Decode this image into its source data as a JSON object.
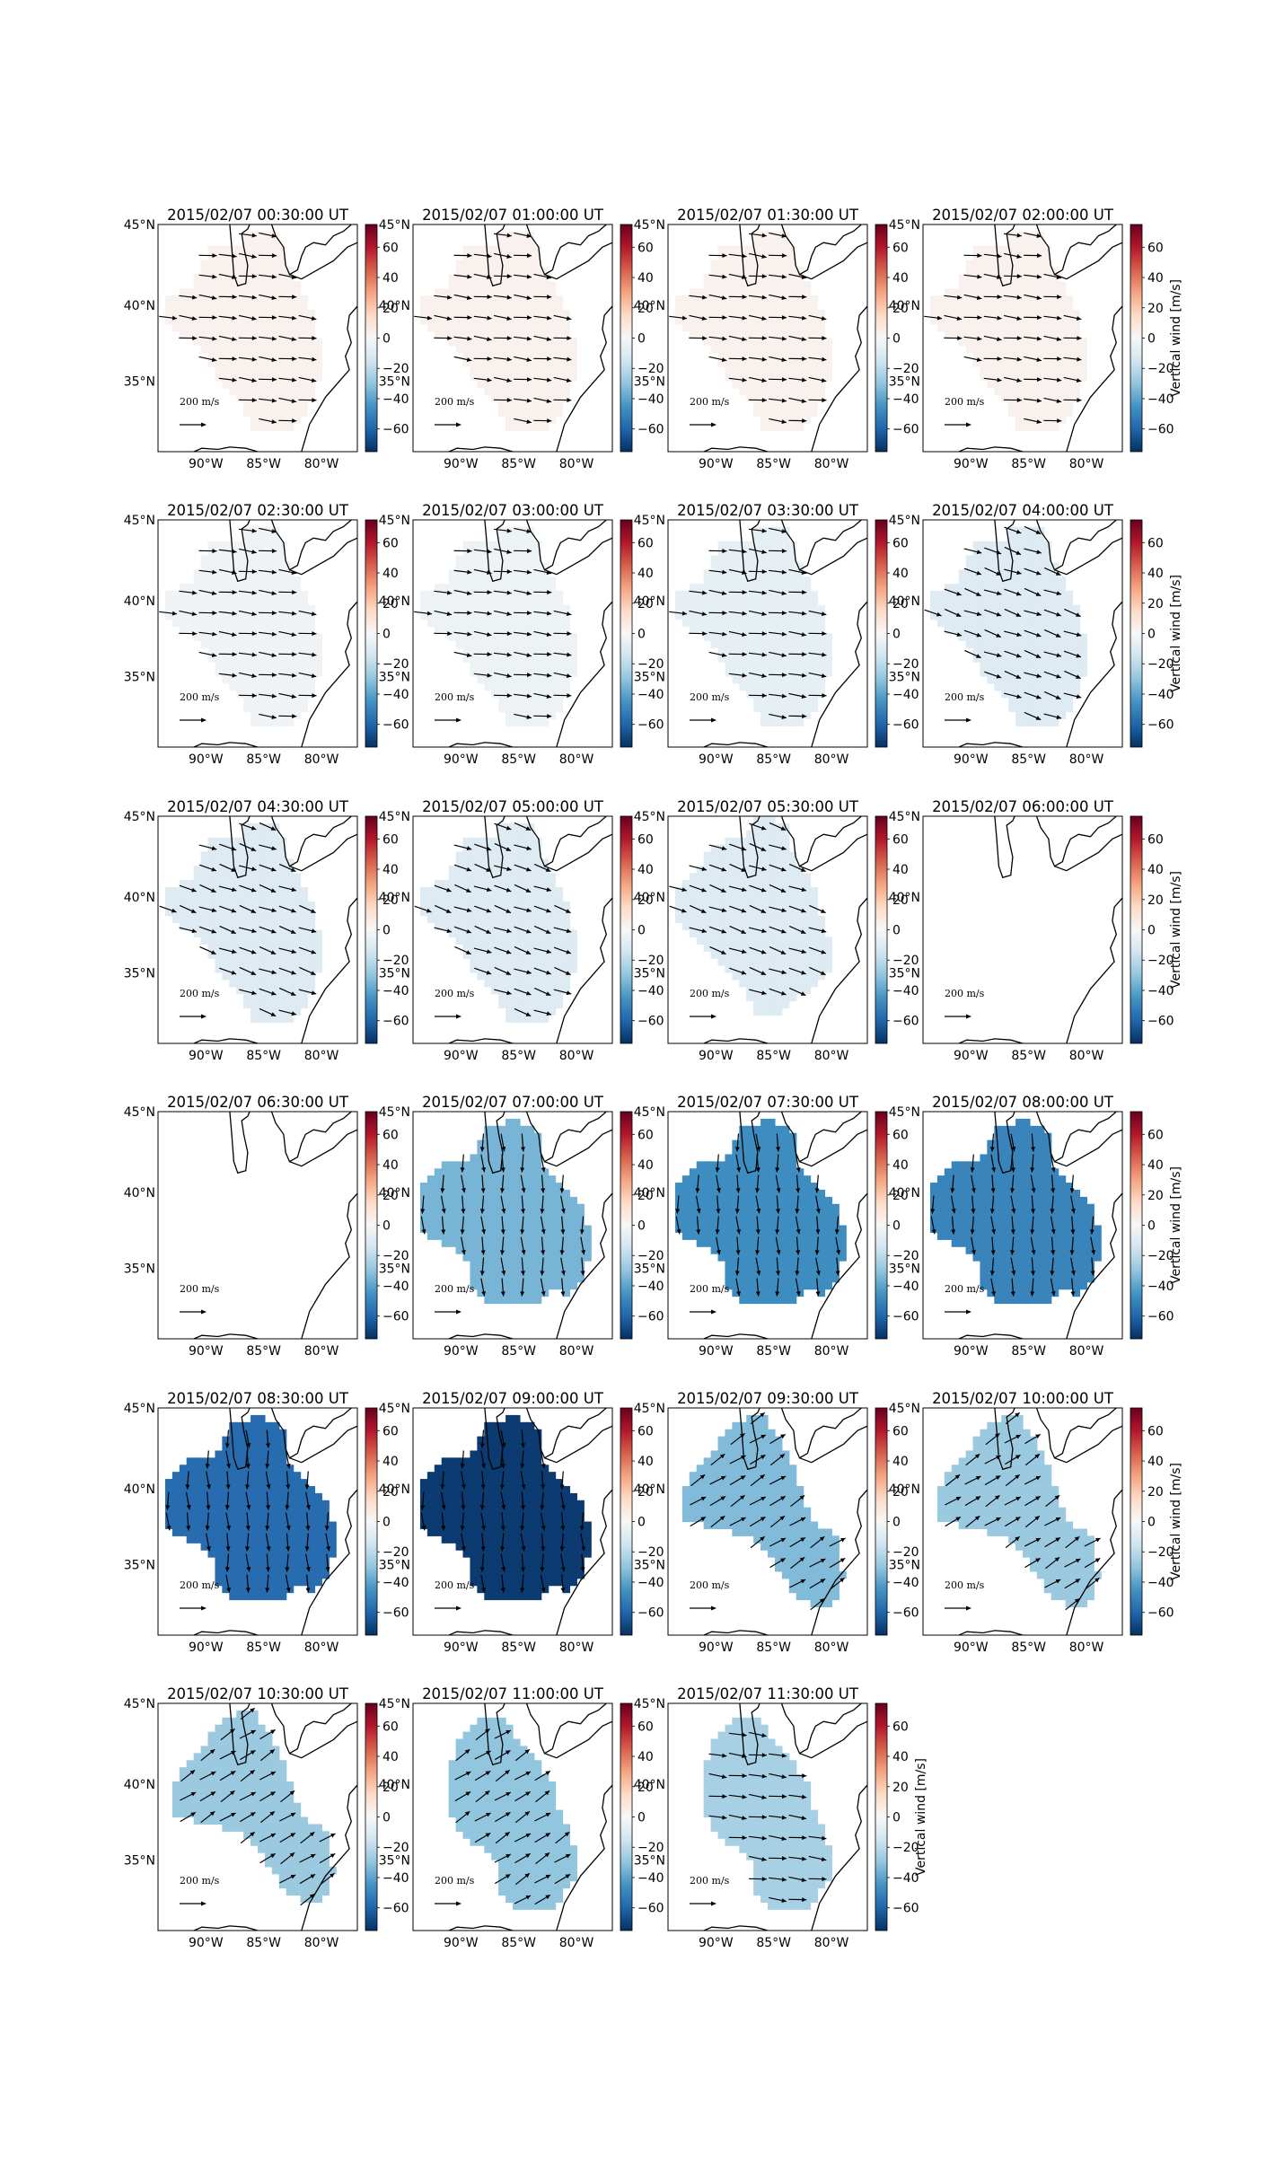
{
  "figure": {
    "colorbar_label": "Vertical wind [m/s]",
    "colorbar_ticks": [
      "60",
      "40",
      "20",
      "0",
      "−20",
      "−40",
      "−60"
    ],
    "lat_ticks": [
      "45°N",
      "40°N",
      "35°N"
    ],
    "lon_ticks": [
      "90°W",
      "85°W",
      "80°W"
    ],
    "reference_arrow_label": "200 m/s",
    "colors": {
      "map_outline": "#000000",
      "colormap": [
        "#053061",
        "#2166ac",
        "#4393c3",
        "#92c5de",
        "#d1e5f0",
        "#f7f7f7",
        "#fddbc7",
        "#f4a582",
        "#d6604d",
        "#b2182b",
        "#67001f"
      ]
    }
  },
  "chart_data": [
    {
      "type": "heatmap",
      "title": "2015/02/07 00:30:00 UT",
      "xlim": [
        -94,
        -77
      ],
      "ylim": [
        30.5,
        45
      ],
      "vmin": -75,
      "vmax": 75,
      "mean_vertical_wind": 3,
      "shape": "A",
      "winds": "west"
    },
    {
      "type": "heatmap",
      "title": "2015/02/07 01:00:00 UT",
      "xlim": [
        -94,
        -77
      ],
      "ylim": [
        30.5,
        45
      ],
      "vmin": -75,
      "vmax": 75,
      "mean_vertical_wind": 3,
      "shape": "A",
      "winds": "west"
    },
    {
      "type": "heatmap",
      "title": "2015/02/07 01:30:00 UT",
      "xlim": [
        -94,
        -77
      ],
      "ylim": [
        30.5,
        45
      ],
      "vmin": -75,
      "vmax": 75,
      "mean_vertical_wind": 3,
      "shape": "A",
      "winds": "west"
    },
    {
      "type": "heatmap",
      "title": "2015/02/07 02:00:00 UT",
      "xlim": [
        -94,
        -77
      ],
      "ylim": [
        30.5,
        45
      ],
      "vmin": -75,
      "vmax": 75,
      "mean_vertical_wind": 3,
      "shape": "A",
      "winds": "west"
    },
    {
      "type": "heatmap",
      "title": "2015/02/07 02:30:00 UT",
      "xlim": [
        -94,
        -77
      ],
      "ylim": [
        30.5,
        45
      ],
      "vmin": -75,
      "vmax": 75,
      "mean_vertical_wind": -3,
      "shape": "A",
      "winds": "west"
    },
    {
      "type": "heatmap",
      "title": "2015/02/07 03:00:00 UT",
      "xlim": [
        -94,
        -77
      ],
      "ylim": [
        30.5,
        45
      ],
      "vmin": -75,
      "vmax": 75,
      "mean_vertical_wind": -4,
      "shape": "A",
      "winds": "west"
    },
    {
      "type": "heatmap",
      "title": "2015/02/07 03:30:00 UT",
      "xlim": [
        -94,
        -77
      ],
      "ylim": [
        30.5,
        45
      ],
      "vmin": -75,
      "vmax": 75,
      "mean_vertical_wind": -7,
      "shape": "A",
      "winds": "west"
    },
    {
      "type": "heatmap",
      "title": "2015/02/07 04:00:00 UT",
      "xlim": [
        -94,
        -77
      ],
      "ylim": [
        30.5,
        45
      ],
      "vmin": -75,
      "vmax": 75,
      "mean_vertical_wind": -10,
      "shape": "A",
      "winds": "northwest"
    },
    {
      "type": "heatmap",
      "title": "2015/02/07 04:30:00 UT",
      "xlim": [
        -94,
        -77
      ],
      "ylim": [
        30.5,
        45
      ],
      "vmin": -75,
      "vmax": 75,
      "mean_vertical_wind": -10,
      "shape": "A",
      "winds": "northwest"
    },
    {
      "type": "heatmap",
      "title": "2015/02/07 05:00:00 UT",
      "xlim": [
        -94,
        -77
      ],
      "ylim": [
        30.5,
        45
      ],
      "vmin": -75,
      "vmax": 75,
      "mean_vertical_wind": -10,
      "shape": "A",
      "winds": "northwest"
    },
    {
      "type": "heatmap",
      "title": "2015/02/07 05:30:00 UT",
      "xlim": [
        -94,
        -77
      ],
      "ylim": [
        30.5,
        45
      ],
      "vmin": -75,
      "vmax": 75,
      "mean_vertical_wind": -10,
      "shape": "B",
      "winds": "northwest"
    },
    {
      "type": "heatmap",
      "title": "2015/02/07 06:00:00 UT",
      "xlim": [
        -94,
        -77
      ],
      "ylim": [
        30.5,
        45
      ],
      "vmin": -75,
      "vmax": 75,
      "shape": "empty"
    },
    {
      "type": "heatmap",
      "title": "2015/02/07 06:30:00 UT",
      "xlim": [
        -94,
        -77
      ],
      "ylim": [
        30.5,
        45
      ],
      "vmin": -75,
      "vmax": 75,
      "shape": "empty"
    },
    {
      "type": "heatmap",
      "title": "2015/02/07 07:00:00 UT",
      "xlim": [
        -94,
        -77
      ],
      "ylim": [
        30.5,
        45
      ],
      "vmin": -75,
      "vmax": 75,
      "mean_vertical_wind": -35,
      "shape": "C",
      "winds": "north"
    },
    {
      "type": "heatmap",
      "title": "2015/02/07 07:30:00 UT",
      "xlim": [
        -94,
        -77
      ],
      "ylim": [
        30.5,
        45
      ],
      "vmin": -75,
      "vmax": 75,
      "mean_vertical_wind": -47,
      "shape": "C",
      "winds": "north"
    },
    {
      "type": "heatmap",
      "title": "2015/02/07 08:00:00 UT",
      "xlim": [
        -94,
        -77
      ],
      "ylim": [
        30.5,
        45
      ],
      "vmin": -75,
      "vmax": 75,
      "mean_vertical_wind": -50,
      "shape": "C",
      "winds": "north"
    },
    {
      "type": "heatmap",
      "title": "2015/02/07 08:30:00 UT",
      "xlim": [
        -94,
        -77
      ],
      "ylim": [
        30.5,
        45
      ],
      "vmin": -75,
      "vmax": 75,
      "mean_vertical_wind": -58,
      "shape": "C",
      "winds": "north"
    },
    {
      "type": "heatmap",
      "title": "2015/02/07 09:00:00 UT",
      "xlim": [
        -94,
        -77
      ],
      "ylim": [
        30.5,
        45
      ],
      "vmin": -75,
      "vmax": 75,
      "mean_vertical_wind": -72,
      "shape": "C",
      "winds": "north"
    },
    {
      "type": "heatmap",
      "title": "2015/02/07 09:30:00 UT",
      "xlim": [
        -94,
        -77
      ],
      "ylim": [
        30.5,
        45
      ],
      "vmin": -75,
      "vmax": 75,
      "mean_vertical_wind": -33,
      "shape": "D",
      "winds": "southwest"
    },
    {
      "type": "heatmap",
      "title": "2015/02/07 10:00:00 UT",
      "xlim": [
        -94,
        -77
      ],
      "ylim": [
        30.5,
        45
      ],
      "vmin": -75,
      "vmax": 75,
      "mean_vertical_wind": -28,
      "shape": "D",
      "winds": "southwest"
    },
    {
      "type": "heatmap",
      "title": "2015/02/07 10:30:00 UT",
      "xlim": [
        -94,
        -77
      ],
      "ylim": [
        30.5,
        45
      ],
      "vmin": -75,
      "vmax": 75,
      "mean_vertical_wind": -28,
      "shape": "D",
      "winds": "southwest"
    },
    {
      "type": "heatmap",
      "title": "2015/02/07 11:00:00 UT",
      "xlim": [
        -94,
        -77
      ],
      "ylim": [
        30.5,
        45
      ],
      "vmin": -75,
      "vmax": 75,
      "mean_vertical_wind": -30,
      "shape": "E",
      "winds": "southwest"
    },
    {
      "type": "heatmap",
      "title": "2015/02/07 11:30:00 UT",
      "xlim": [
        -94,
        -77
      ],
      "ylim": [
        30.5,
        45
      ],
      "vmin": -75,
      "vmax": 75,
      "mean_vertical_wind": -25,
      "shape": "E",
      "winds": "west"
    }
  ]
}
